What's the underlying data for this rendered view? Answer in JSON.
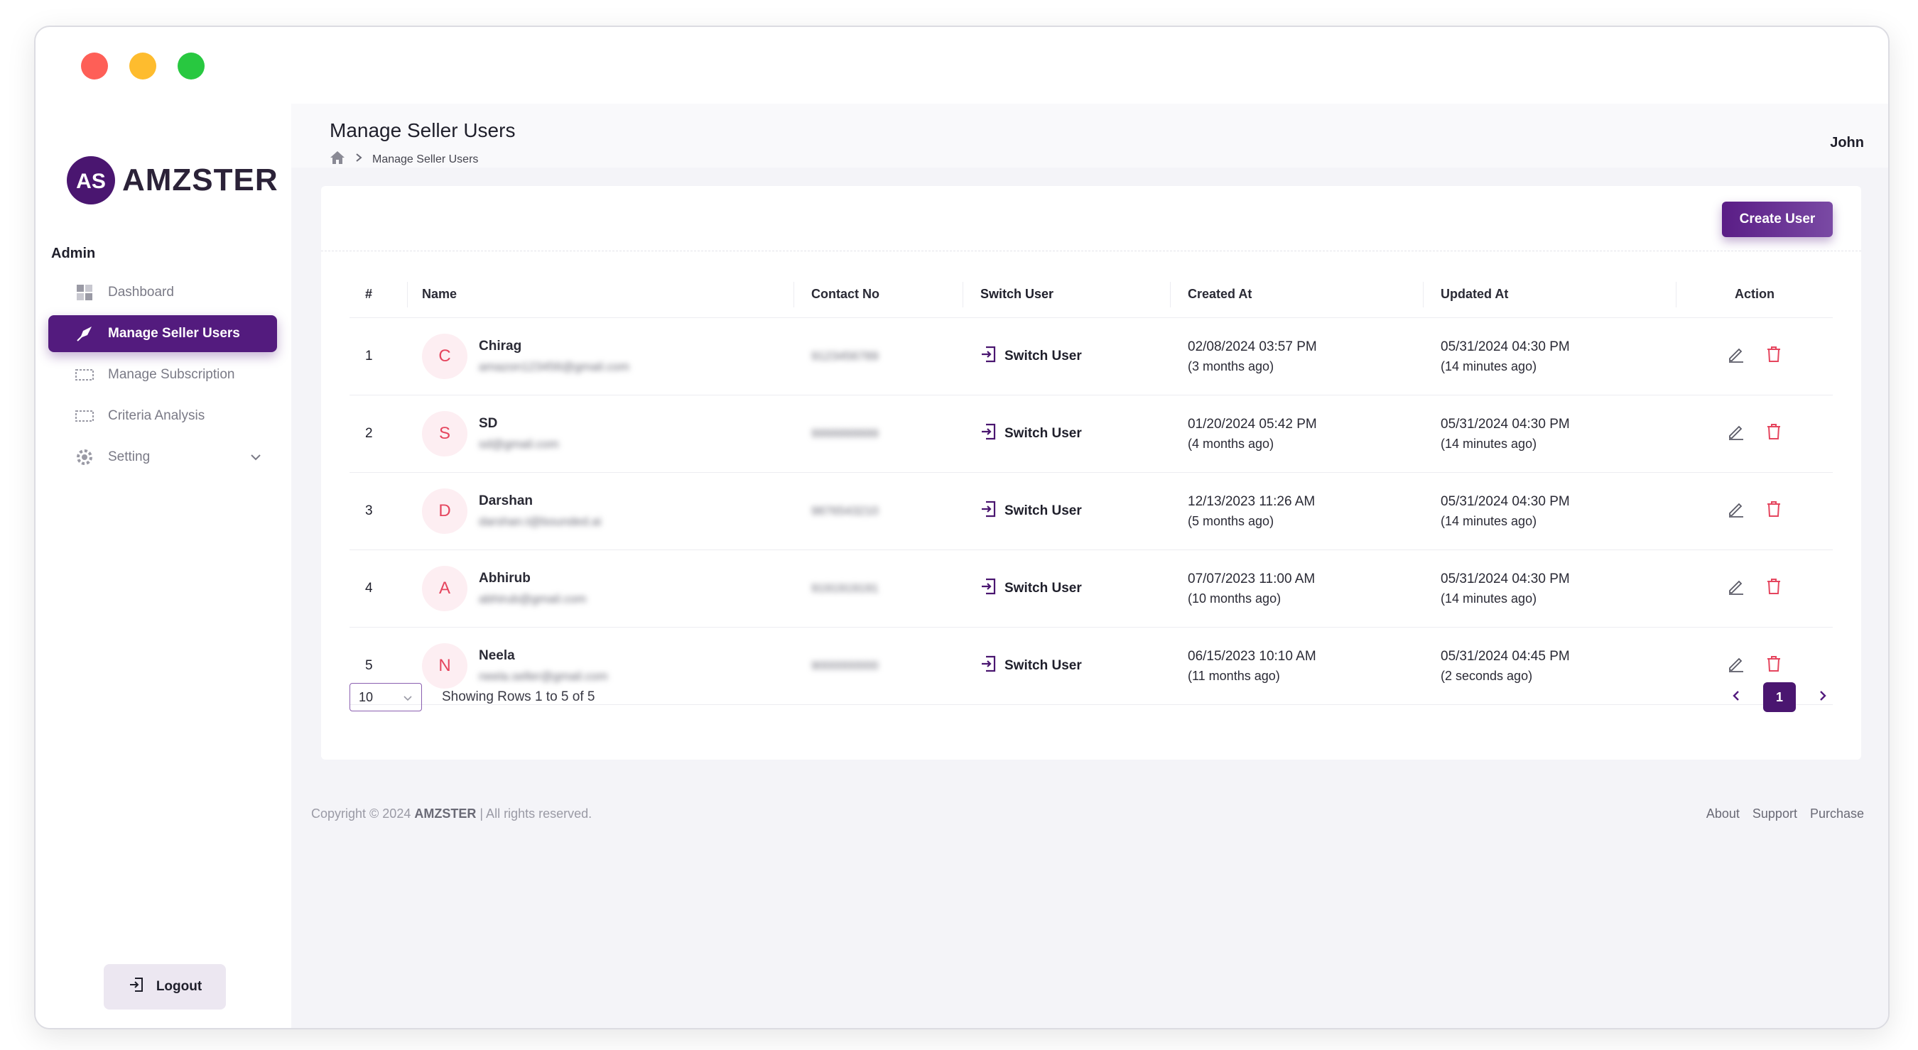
{
  "app": {
    "brand": "AMZSTER",
    "logo_monogram": "AS"
  },
  "colors": {
    "accent": "#531b7e",
    "avatar_bg": "#fdeef2",
    "avatar_text": "#e5455e",
    "delete": "#e5455e"
  },
  "sidebar": {
    "section_label": "Admin",
    "items": [
      {
        "label": "Dashboard",
        "icon": "dashboard-icon",
        "active": false
      },
      {
        "label": "Manage Seller Users",
        "icon": "rocket-icon",
        "active": true
      },
      {
        "label": "Manage Subscription",
        "icon": "ticket-icon",
        "active": false
      },
      {
        "label": "Criteria Analysis",
        "icon": "ticket-icon",
        "active": false
      },
      {
        "label": "Setting",
        "icon": "gear-icon",
        "active": false
      }
    ],
    "logout_label": "Logout"
  },
  "header": {
    "title": "Manage Seller Users",
    "breadcrumb": "Manage Seller Users",
    "user_name": "John"
  },
  "toolbar": {
    "create_label": "Create User"
  },
  "table": {
    "columns": [
      "#",
      "Name",
      "Contact No",
      "Switch User",
      "Created At",
      "Updated At",
      "Action"
    ],
    "rows": [
      {
        "num": "1",
        "initial": "C",
        "name": "Chirag",
        "email": "amazon123456@gmail.com",
        "contact": "9123456789",
        "switch": "Switch User",
        "created": "02/08/2024 03:57 PM",
        "created_rel": "(3 months ago)",
        "updated": "05/31/2024 04:30 PM",
        "updated_rel": "(14 minutes ago)"
      },
      {
        "num": "2",
        "initial": "S",
        "name": "SD",
        "email": "sd@gmail.com",
        "contact": "9999999999",
        "switch": "Switch User",
        "created": "01/20/2024 05:42 PM",
        "created_rel": "(4 months ago)",
        "updated": "05/31/2024 04:30 PM",
        "updated_rel": "(14 minutes ago)"
      },
      {
        "num": "3",
        "initial": "D",
        "name": "Darshan",
        "email": "darshan.t@bounded.ai",
        "contact": "9876543210",
        "switch": "Switch User",
        "created": "12/13/2023 11:26 AM",
        "created_rel": "(5 months ago)",
        "updated": "05/31/2024 04:30 PM",
        "updated_rel": "(14 minutes ago)"
      },
      {
        "num": "4",
        "initial": "A",
        "name": "Abhirub",
        "email": "abhirub@gmail.com",
        "contact": "9191919191",
        "switch": "Switch User",
        "created": "07/07/2023 11:00 AM",
        "created_rel": "(10 months ago)",
        "updated": "05/31/2024 04:30 PM",
        "updated_rel": "(14 minutes ago)"
      },
      {
        "num": "5",
        "initial": "N",
        "name": "Neela",
        "email": "neela.seller@gmail.com",
        "contact": "9000000000",
        "switch": "Switch User",
        "created": "06/15/2023 10:10 AM",
        "created_rel": "(11 months ago)",
        "updated": "05/31/2024 04:45 PM",
        "updated_rel": "(2 seconds ago)"
      }
    ]
  },
  "pagination": {
    "page_size": "10",
    "showing": "Showing Rows 1 to 5 of 5",
    "current_page": "1"
  },
  "footer": {
    "copyright_prefix": "Copyright © 2024",
    "copyright_brand": "AMZSTER",
    "copyright_suffix": "| All rights reserved.",
    "links": [
      "About",
      "Support",
      "Purchase"
    ]
  }
}
